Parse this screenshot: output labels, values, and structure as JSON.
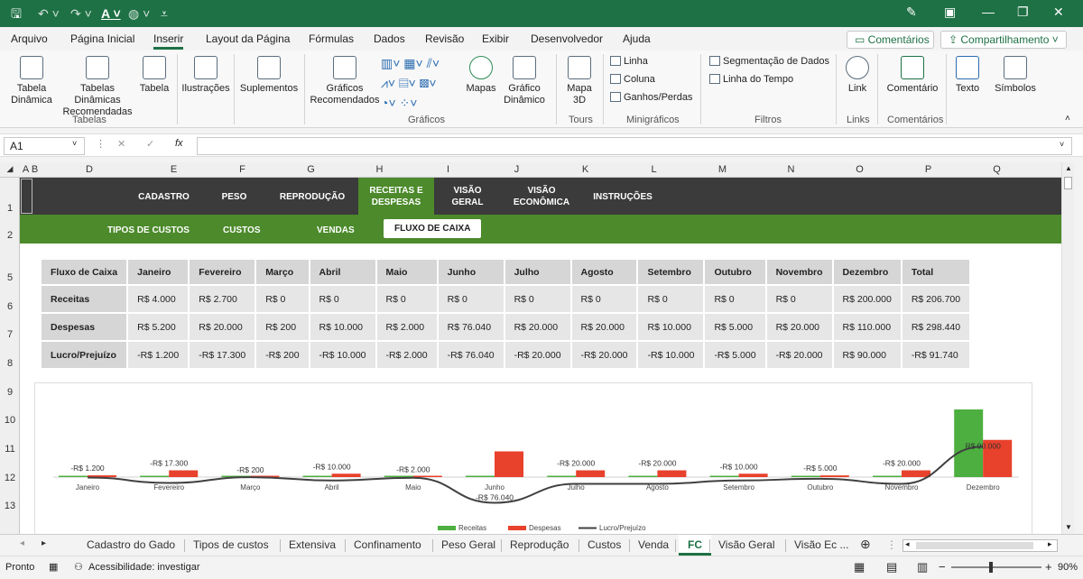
{
  "menu": [
    "Arquivo",
    "Página Inicial",
    "Inserir",
    "Layout da Página",
    "Fórmulas",
    "Dados",
    "Revisão",
    "Exibir",
    "Desenvolvedor",
    "Ajuda"
  ],
  "comments_btn": "Comentários",
  "share_btn": "Compartilhamento",
  "ribbon": {
    "tabela_dinamica": "Tabela Dinâmica",
    "tabelas_rec": "Tabelas Dinâmicas Recomendadas",
    "tabela": "Tabela",
    "ilustracoes": "Ilustrações",
    "suplementos": "Suplementos",
    "graficos_rec": "Gráficos Recomendados",
    "mapas": "Mapas",
    "grafico_din": "Gráfico Dinâmico",
    "mapa3d": "Mapa 3D",
    "linha": "Linha",
    "coluna": "Coluna",
    "ganhos": "Ganhos/Perdas",
    "segmentacao": "Segmentação de Dados",
    "linha_tempo": "Linha do Tempo",
    "link": "Link",
    "comentario": "Comentário",
    "texto": "Texto",
    "simbolos": "Símbolos",
    "groups": {
      "tabelas": "Tabelas",
      "graficos": "Gráficos",
      "tours": "Tours",
      "minigraficos": "Minigráficos",
      "filtros": "Filtros",
      "links": "Links",
      "comentarios": "Comentários"
    }
  },
  "namebox": "A1",
  "columns": [
    "A",
    "B",
    "D",
    "E",
    "F",
    "G",
    "H",
    "I",
    "J",
    "K",
    "L",
    "M",
    "N",
    "O",
    "P",
    "Q"
  ],
  "rows": [
    "1",
    "2",
    "5",
    "6",
    "7",
    "8",
    "9",
    "10",
    "11",
    "12",
    "13"
  ],
  "nav1": [
    "CADASTRO",
    "PESO",
    "REPRODUÇÃO",
    "RECEITAS E DESPESAS",
    "VISÃO GERAL",
    "VISÃO ECONÔMICA",
    "INSTRUÇÕES"
  ],
  "nav2": [
    "TIPOS DE CUSTOS",
    "CUSTOS",
    "VENDAS",
    "FLUXO DE CAIXA"
  ],
  "table": {
    "header": [
      "Fluxo de Caixa",
      "Janeiro",
      "Fevereiro",
      "Março",
      "Abril",
      "Maio",
      "Junho",
      "Julho",
      "Agosto",
      "Setembro",
      "Outubro",
      "Novembro",
      "Dezembro",
      "Total"
    ],
    "rows": [
      [
        "Receitas",
        "R$ 4.000",
        "R$ 2.700",
        "R$ 0",
        "R$ 0",
        "R$ 0",
        "R$ 0",
        "R$ 0",
        "R$ 0",
        "R$ 0",
        "R$ 0",
        "R$ 0",
        "R$ 200.000",
        "R$ 206.700"
      ],
      [
        "Despesas",
        "R$ 5.200",
        "R$ 20.000",
        "R$ 200",
        "R$ 10.000",
        "R$ 2.000",
        "R$ 76.040",
        "R$ 20.000",
        "R$ 20.000",
        "R$ 10.000",
        "R$ 5.000",
        "R$ 20.000",
        "R$ 110.000",
        "R$ 298.440"
      ],
      [
        "Lucro/Prejuízo",
        "-R$ 1.200",
        "-R$ 17.300",
        "-R$ 200",
        "-R$ 10.000",
        "-R$ 2.000",
        "-R$ 76.040",
        "-R$ 20.000",
        "-R$ 20.000",
        "-R$ 10.000",
        "-R$ 5.000",
        "-R$ 20.000",
        "R$ 90.000",
        "-R$ 91.740"
      ]
    ]
  },
  "chart_data": {
    "type": "bar",
    "categories": [
      "Janeiro",
      "Fevereiro",
      "Março",
      "Abril",
      "Maio",
      "Junho",
      "Julho",
      "Agosto",
      "Setembro",
      "Outubro",
      "Novembro",
      "Dezembro"
    ],
    "series": [
      {
        "name": "Receitas",
        "type": "bar",
        "color": "#4caf3f",
        "values": [
          4000,
          2700,
          0,
          0,
          0,
          0,
          0,
          0,
          0,
          0,
          0,
          200000
        ]
      },
      {
        "name": "Despesas",
        "type": "bar",
        "color": "#e8412c",
        "values": [
          5200,
          20000,
          200,
          10000,
          2000,
          76040,
          20000,
          20000,
          10000,
          5000,
          20000,
          110000
        ]
      },
      {
        "name": "Lucro/Prejuízo",
        "type": "line",
        "color": "#404040",
        "values": [
          -1200,
          -17300,
          -200,
          -10000,
          -2000,
          -76040,
          -20000,
          -20000,
          -10000,
          -5000,
          -20000,
          90000
        ]
      }
    ],
    "data_labels": [
      "-R$ 1.200",
      "-R$ 17.300",
      "-R$ 200",
      "-R$ 10.000",
      "-R$ 2.000",
      "-R$ 76.040",
      "-R$ 20.000",
      "-R$ 20.000",
      "-R$ 10.000",
      "-R$ 5.000",
      "-R$ 20.000",
      "R$ 90.000"
    ],
    "legend_position": "bottom",
    "grid": false
  },
  "sheet_tabs": [
    "Cadastro do Gado",
    "Tipos de custos",
    "Extensiva",
    "Confinamento",
    "Peso Geral",
    "Reprodução",
    "Custos",
    "Venda",
    "FC",
    "Visão Geral",
    "Visão Ec ..."
  ],
  "active_tab": "FC",
  "status": {
    "ready": "Pronto",
    "accessibility": "Acessibilidade: investigar",
    "zoom": "90%"
  },
  "colors": {
    "brand": "#1e7145",
    "nav_dark": "#3b3b3b",
    "nav_green": "#4c8a2b"
  }
}
